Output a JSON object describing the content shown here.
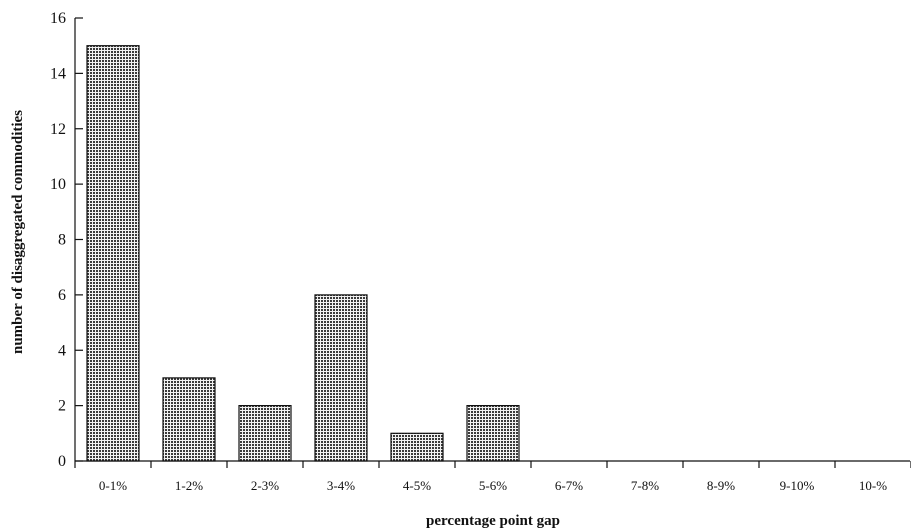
{
  "chart_data": {
    "type": "bar",
    "categories": [
      "0-1%",
      "1-2%",
      "2-3%",
      "3-4%",
      "4-5%",
      "5-6%",
      "6-7%",
      "7-8%",
      "8-9%",
      "9-10%",
      "10-%"
    ],
    "values": [
      15,
      3,
      2,
      6,
      1,
      2,
      0,
      0,
      0,
      0,
      0
    ],
    "xlabel": "percentage point gap",
    "ylabel": "number of disaggregated commodities",
    "ylim": [
      0,
      16
    ],
    "yticks": [
      "0",
      "2",
      "4",
      "6",
      "8",
      "10",
      "12",
      "14",
      "16"
    ],
    "grid": false,
    "bar_fill": "#5a5a5a",
    "bar_edge": "#111111"
  }
}
